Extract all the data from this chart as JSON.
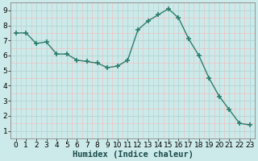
{
  "xlabel": "Humidex (Indice chaleur)",
  "ylabel": "",
  "background_color": "#cdeaea",
  "grid_color_major": "#b8d8d8",
  "grid_color_minor": "#f0c0c0",
  "line_color": "#2d7d6e",
  "marker_color": "#2d7d6e",
  "x_data": [
    0,
    1,
    2,
    3,
    4,
    5,
    6,
    7,
    8,
    9,
    10,
    11,
    12,
    13,
    14,
    15,
    16,
    17,
    18,
    19,
    20,
    21,
    22,
    23
  ],
  "y_data": [
    7.5,
    7.5,
    6.8,
    6.9,
    6.1,
    6.1,
    5.7,
    5.6,
    5.5,
    5.2,
    5.3,
    5.7,
    7.7,
    8.3,
    8.7,
    9.1,
    8.5,
    7.1,
    6.0,
    4.5,
    3.3,
    2.4,
    1.5,
    1.4
  ],
  "xlim": [
    -0.5,
    23.5
  ],
  "ylim": [
    0.5,
    9.5
  ],
  "yticks": [
    1,
    2,
    3,
    4,
    5,
    6,
    7,
    8,
    9
  ],
  "xticks": [
    0,
    1,
    2,
    3,
    4,
    5,
    6,
    7,
    8,
    9,
    10,
    11,
    12,
    13,
    14,
    15,
    16,
    17,
    18,
    19,
    20,
    21,
    22,
    23
  ],
  "line_width": 1.0,
  "marker_size": 4.0,
  "tick_fontsize": 6.5,
  "xlabel_fontsize": 7.5
}
